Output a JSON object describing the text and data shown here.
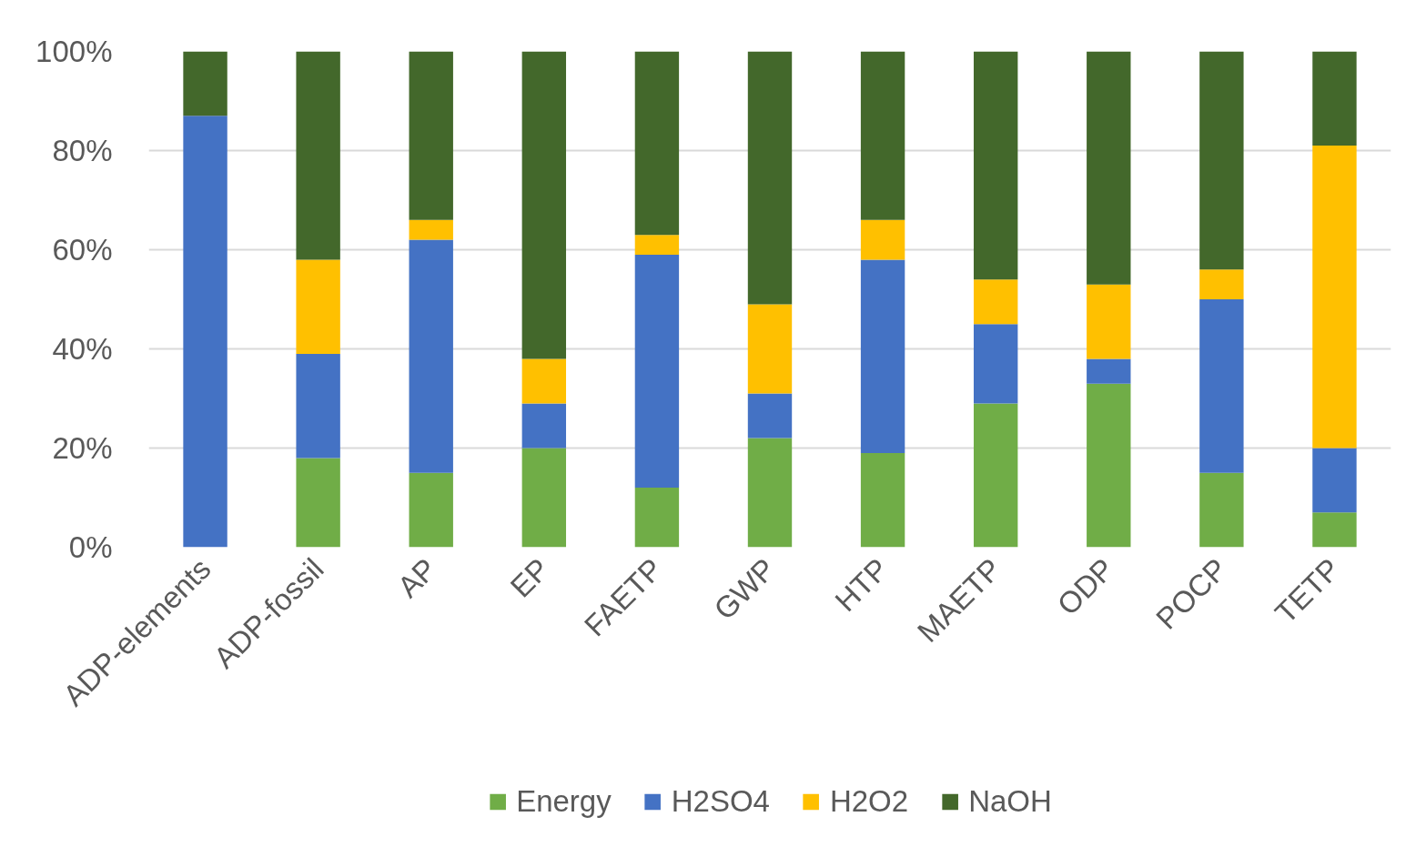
{
  "chart_data": {
    "type": "bar",
    "stacked": true,
    "categories": [
      "ADP-elements",
      "ADP-fossil",
      "AP",
      "EP",
      "FAETP",
      "GWP",
      "HTP",
      "MAETP",
      "ODP",
      "POCP",
      "TETP"
    ],
    "series": [
      {
        "name": "Energy",
        "color": "#70ad47",
        "values": [
          0,
          18,
          15,
          20,
          12,
          22,
          19,
          29,
          33,
          15,
          7
        ]
      },
      {
        "name": "H2SO4",
        "color": "#4472c4",
        "values": [
          87,
          21,
          47,
          9,
          47,
          9,
          39,
          16,
          5,
          35,
          13
        ]
      },
      {
        "name": "H2O2",
        "color": "#ffc000",
        "values": [
          0,
          19,
          4,
          9,
          4,
          18,
          8,
          9,
          15,
          6,
          61
        ]
      },
      {
        "name": "NaOH",
        "color": "#43682b",
        "values": [
          13,
          42,
          34,
          62,
          37,
          51,
          34,
          46,
          47,
          44,
          19
        ]
      }
    ],
    "ylim": [
      0,
      100
    ],
    "yticks": [
      {
        "value": 0,
        "label": "0%"
      },
      {
        "value": 20,
        "label": "20%"
      },
      {
        "value": 40,
        "label": "40%"
      },
      {
        "value": 60,
        "label": "60%"
      },
      {
        "value": 80,
        "label": "80%"
      },
      {
        "value": 100,
        "label": "100%"
      }
    ],
    "grid": "y",
    "legend": "bottom"
  }
}
